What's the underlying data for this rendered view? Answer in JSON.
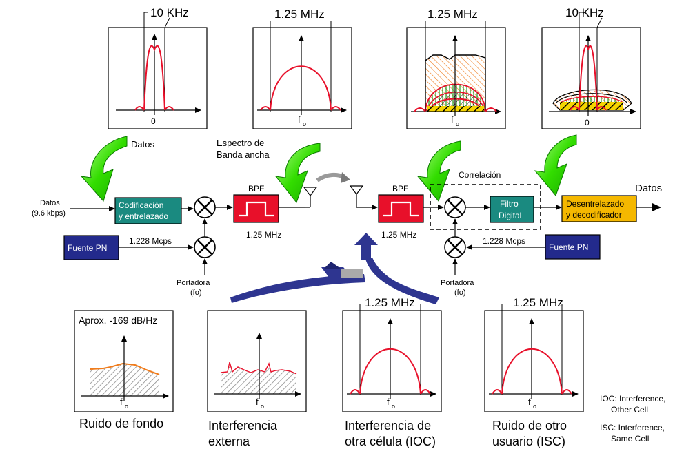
{
  "colors": {
    "teal": "#1a8a80",
    "navy": "#232a8c",
    "bpf_red": "#e8102a",
    "amber": "#f5b800",
    "green_arrow": "#22d000",
    "blue_arrow": "#2e3590",
    "orange_noise": "#f07c1c"
  },
  "top_panels": {
    "p1_label": "10 KHz",
    "p1_center": "0",
    "p2_label": "1.25 MHz",
    "p2_center": "f",
    "p2_sub": "o",
    "p3_label": "1.25 MHz",
    "p3_center": "f",
    "p3_sub": "o",
    "p4_label": "10 KHz",
    "p4_center": "0"
  },
  "annotations": {
    "datos": "Datos",
    "espectro_l1": "Espectro de",
    "espectro_l2": "Banda ancha",
    "correlacion": "Correlación"
  },
  "chain": {
    "datos_in_l1": "Datos",
    "datos_in_l2": "(9.6 kbps)",
    "coding_l1": "Codificación",
    "coding_l2": "y entrelazado",
    "pn_left": "Fuente PN",
    "rate_left": "1.228 Mcps",
    "bpf_tx": "BPF",
    "bpf_tx_bw": "1.25 MHz",
    "carrier_left_l1": "Portadora",
    "carrier_left_l2": "(fo)",
    "bpf_rx": "BPF",
    "bpf_rx_bw": "1.25 MHz",
    "filtro_l1": "Filtro",
    "filtro_l2": "Digital",
    "desentr_l1": "Desentrelazado",
    "desentr_l2": "y decodificador",
    "datos_out": "Datos",
    "pn_right": "Fuente PN",
    "rate_right": "1.228 Mcps",
    "carrier_right_l1": "Portadora",
    "carrier_right_l2": "(fo)"
  },
  "bottom_panels": {
    "b1_label": "Aprox. -169 dB/Hz",
    "b1_center": "f",
    "b1_sub": "o",
    "b1_caption": "Ruido de fondo",
    "b2_center": "f",
    "b2_sub": "o",
    "b2_caption_l1": "Interferencia",
    "b2_caption_l2": "externa",
    "b3_label": "1.25 MHz",
    "b3_center": "f",
    "b3_sub": "o",
    "b3_caption_l1": "Interferencia de",
    "b3_caption_l2": "otra célula  (IOC)",
    "b4_label": "1.25 MHz",
    "b4_center": "f",
    "b4_sub": "o",
    "b4_caption_l1": "Ruido de otro",
    "b4_caption_l2": "usuario (ISC)"
  },
  "legend": {
    "ioc_l1": "IOC: Interference,",
    "ioc_l2": "Other Cell",
    "isc_l1": "ISC: Interference,",
    "isc_l2": "Same Cell"
  }
}
